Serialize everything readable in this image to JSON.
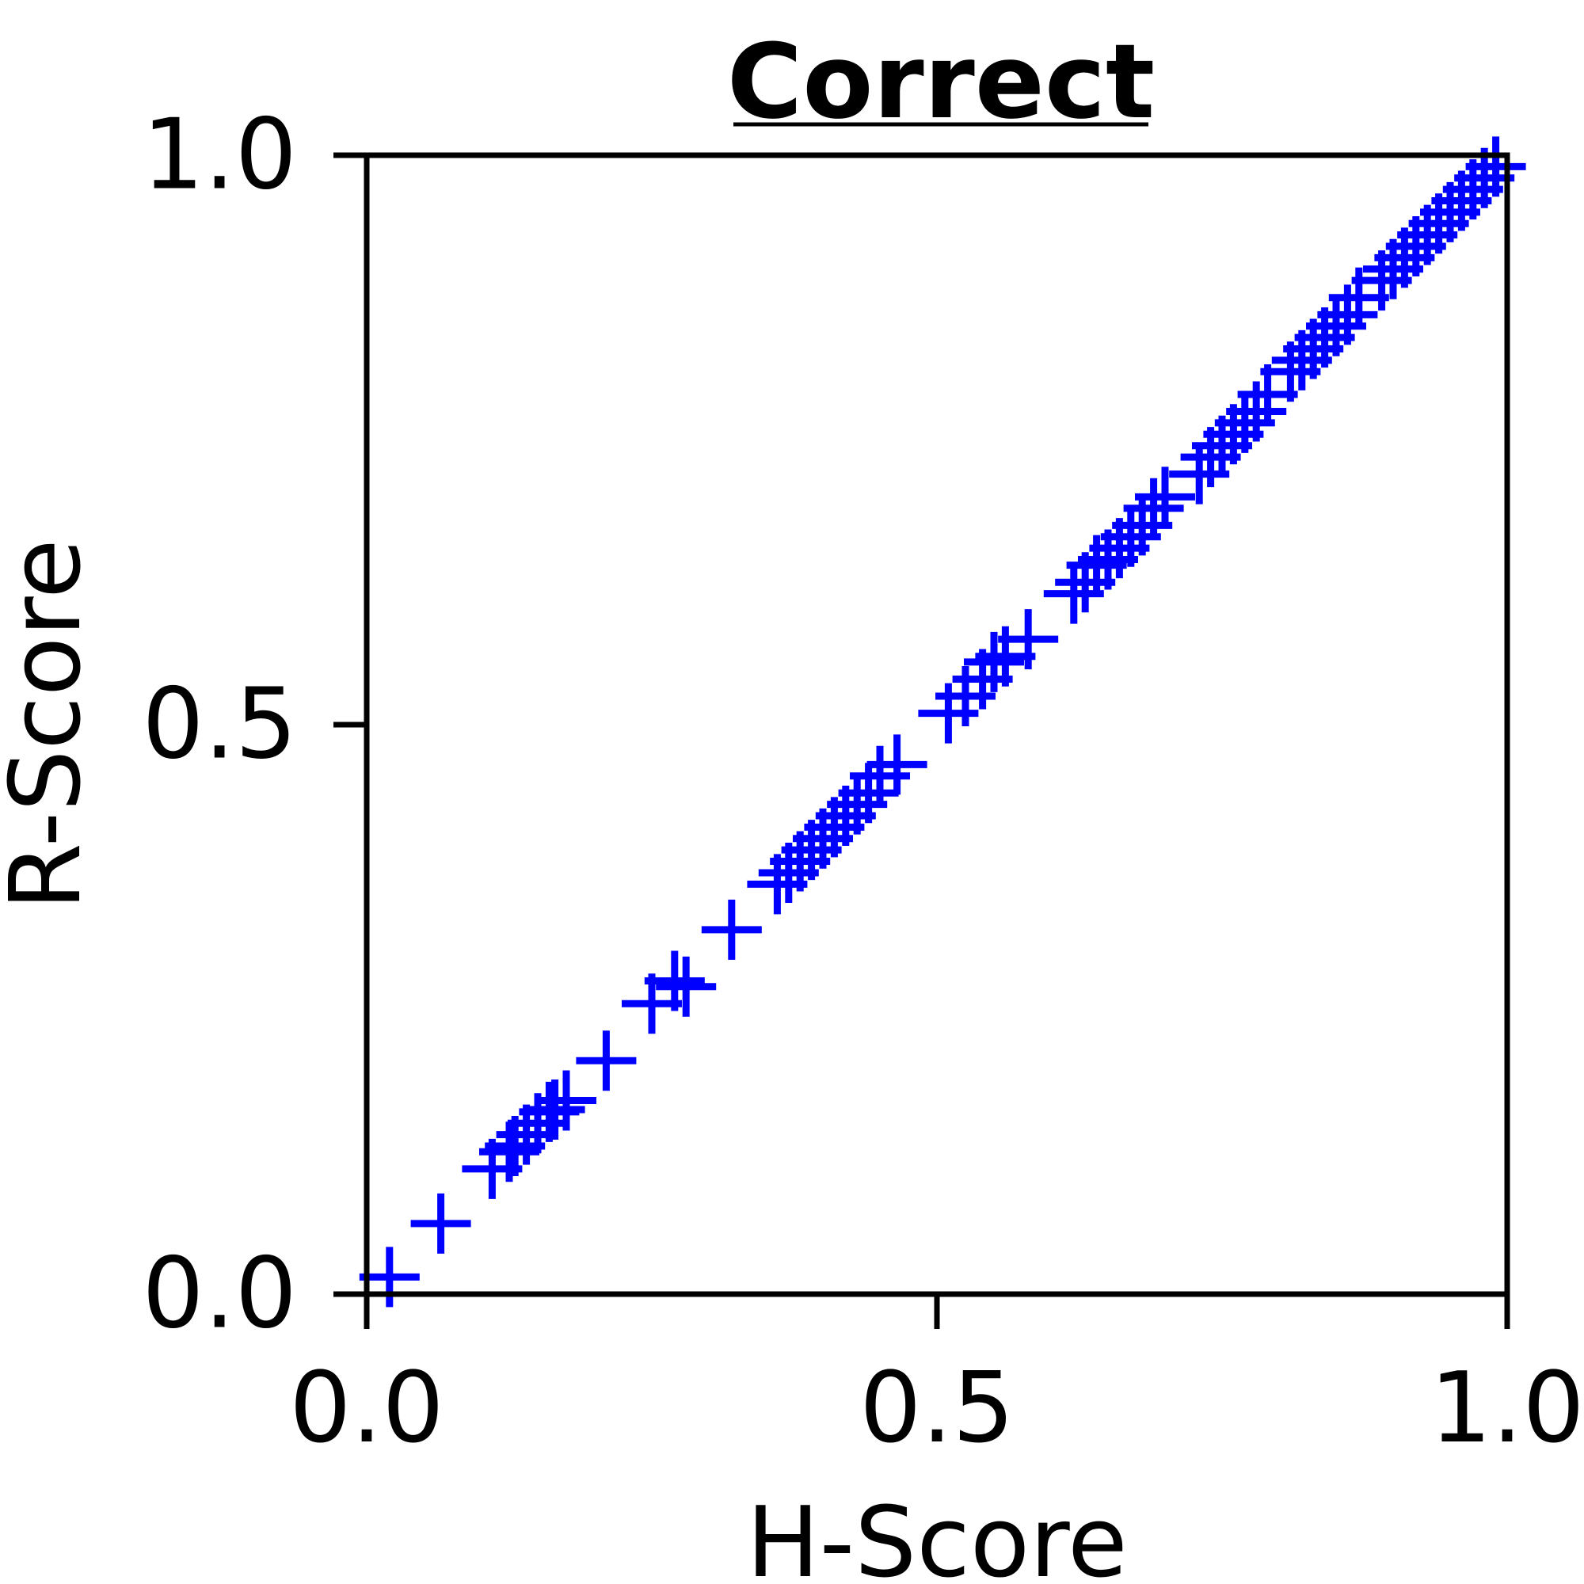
{
  "chart_data": {
    "type": "scatter",
    "title": "Correct",
    "xlabel": "H-Score",
    "ylabel": "R-Score",
    "xlim": [
      0.0,
      1.0
    ],
    "ylim": [
      0.0,
      1.0
    ],
    "xticks": [
      "0.0",
      "0.5",
      "1.0"
    ],
    "yticks": [
      "0.0",
      "0.5",
      "1.0"
    ],
    "grid": false,
    "marker": "plus",
    "color": "#0000ff",
    "series": [
      {
        "x": [
          0.02,
          0.065,
          0.11,
          0.125,
          0.13,
          0.14,
          0.15,
          0.16,
          0.165,
          0.175,
          0.21,
          0.25,
          0.27,
          0.28,
          0.32,
          0.36,
          0.37,
          0.38,
          0.39,
          0.4,
          0.41,
          0.42,
          0.43,
          0.44,
          0.45,
          0.465,
          0.51,
          0.525,
          0.54,
          0.55,
          0.56,
          0.58,
          0.62,
          0.63,
          0.64,
          0.65,
          0.66,
          0.67,
          0.68,
          0.69,
          0.7,
          0.73,
          0.74,
          0.75,
          0.76,
          0.77,
          0.78,
          0.79,
          0.81,
          0.82,
          0.83,
          0.84,
          0.85,
          0.86,
          0.87,
          0.89,
          0.9,
          0.91,
          0.92,
          0.93,
          0.94,
          0.95,
          0.96,
          0.97,
          0.98,
          0.99
        ],
        "y": [
          0.015,
          0.062,
          0.11,
          0.125,
          0.13,
          0.14,
          0.15,
          0.16,
          0.162,
          0.17,
          0.205,
          0.255,
          0.275,
          0.27,
          0.32,
          0.36,
          0.37,
          0.38,
          0.39,
          0.4,
          0.41,
          0.42,
          0.43,
          0.44,
          0.455,
          0.465,
          0.51,
          0.525,
          0.54,
          0.555,
          0.56,
          0.575,
          0.615,
          0.625,
          0.64,
          0.645,
          0.655,
          0.665,
          0.675,
          0.69,
          0.7,
          0.72,
          0.735,
          0.745,
          0.755,
          0.765,
          0.775,
          0.79,
          0.81,
          0.82,
          0.83,
          0.84,
          0.85,
          0.86,
          0.875,
          0.89,
          0.9,
          0.91,
          0.92,
          0.93,
          0.94,
          0.95,
          0.96,
          0.97,
          0.98,
          0.99
        ]
      }
    ]
  }
}
